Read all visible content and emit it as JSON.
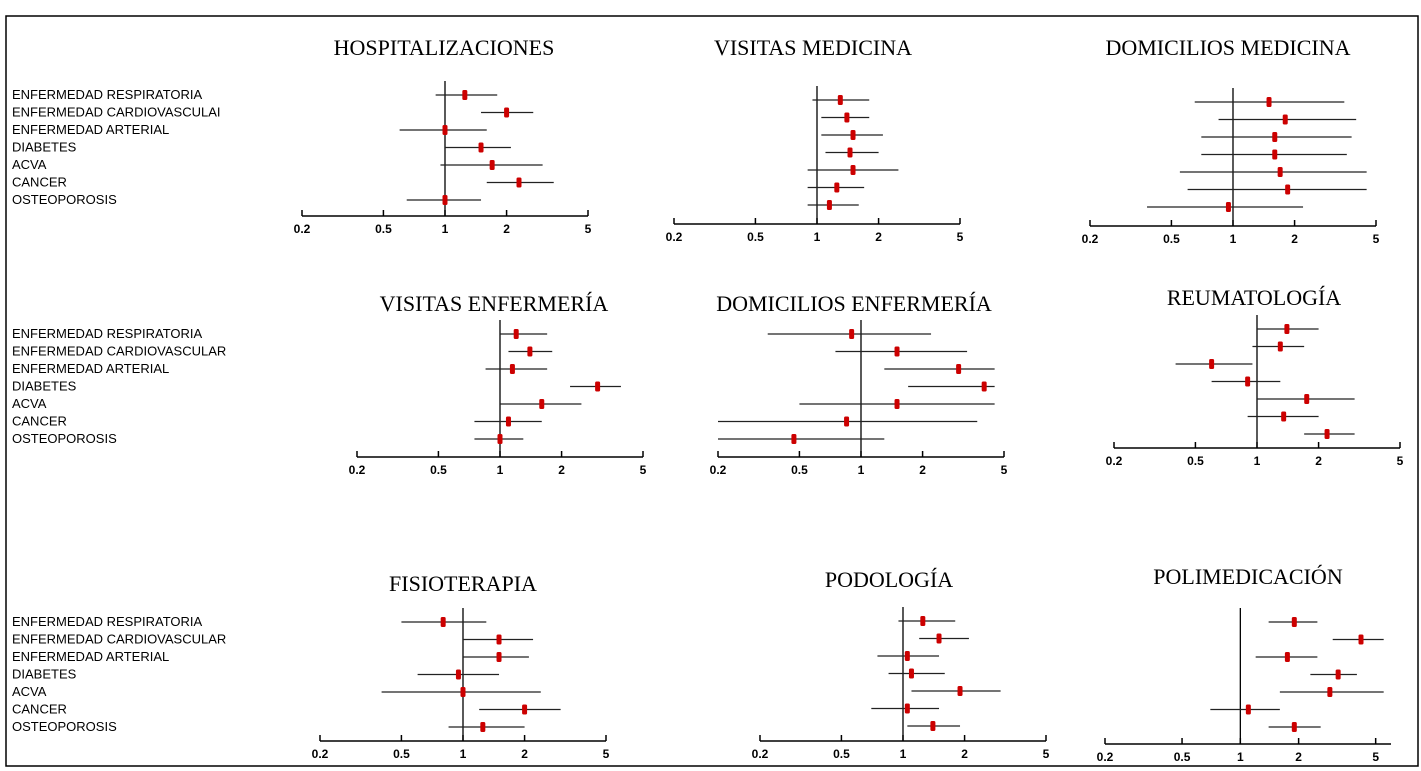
{
  "chart_data": [
    {
      "type": "forest",
      "title": "HOSPITALIZACIONES",
      "categories": [
        "ENFERMEDAD RESPIRATORIA",
        "ENFERMEDAD CARDIOVASCULAI",
        "ENFERMEDAD ARTERIAL",
        "DIABETES",
        "ACVA",
        "CANCER",
        "OSTEOPOROSIS"
      ],
      "estimate": [
        1.25,
        2.0,
        1.0,
        1.5,
        1.7,
        2.3,
        1.0
      ],
      "ci_low": [
        0.9,
        1.5,
        0.6,
        1.0,
        0.95,
        1.6,
        0.65
      ],
      "ci_high": [
        1.8,
        2.7,
        1.6,
        2.1,
        3.0,
        3.4,
        1.5
      ],
      "scale": "log",
      "ticks": [
        "0.2",
        "0.5",
        "1",
        "2",
        "5"
      ],
      "xlim": [
        0.2,
        5
      ]
    },
    {
      "type": "forest",
      "title": "VISITAS MEDICINA",
      "categories": [
        "ENFERMEDAD RESPIRATORIA",
        "ENFERMEDAD CARDIOVASCULAR",
        "ENFERMEDAD ARTERIAL",
        "DIABETES",
        "ACVA",
        "CANCER",
        "OSTEOPOROSIS"
      ],
      "estimate": [
        1.3,
        1.4,
        1.5,
        1.45,
        1.5,
        1.25,
        1.15
      ],
      "ci_low": [
        0.95,
        1.05,
        1.05,
        1.1,
        0.9,
        0.9,
        0.9
      ],
      "ci_high": [
        1.8,
        1.8,
        2.1,
        2.0,
        2.5,
        1.7,
        1.6
      ],
      "scale": "log",
      "ticks": [
        "0.2",
        "0.5",
        "1",
        "2",
        "5"
      ],
      "xlim": [
        0.2,
        5
      ]
    },
    {
      "type": "forest",
      "title": "DOMICILIOS MEDICINA",
      "categories": [
        "ENFERMEDAD RESPIRATORIA",
        "ENFERMEDAD CARDIOVASCULAR",
        "ENFERMEDAD ARTERIAL",
        "DIABETES",
        "ACVA",
        "CANCER",
        "OSTEOPOROSIS"
      ],
      "estimate": [
        1.5,
        1.8,
        1.6,
        1.6,
        1.7,
        1.85,
        0.95
      ],
      "ci_low": [
        0.65,
        0.85,
        0.7,
        0.7,
        0.55,
        0.6,
        0.38
      ],
      "ci_high": [
        3.5,
        4.0,
        3.8,
        3.6,
        4.5,
        4.5,
        2.2
      ],
      "scale": "log",
      "ticks": [
        "0.2",
        "0.5",
        "1",
        "2",
        "5"
      ],
      "xlim": [
        0.2,
        5
      ]
    },
    {
      "type": "forest",
      "title": "VISITAS ENFERMERÍA",
      "categories": [
        "ENFERMEDAD RESPIRATORIA",
        "ENFERMEDAD CARDIOVASCULAR",
        "ENFERMEDAD ARTERIAL",
        "DIABETES",
        "ACVA",
        "CANCER",
        "OSTEOPOROSIS"
      ],
      "estimate": [
        1.2,
        1.4,
        1.15,
        3.0,
        1.6,
        1.1,
        1.0
      ],
      "ci_low": [
        1.0,
        1.1,
        0.85,
        2.2,
        1.0,
        0.75,
        0.75
      ],
      "ci_high": [
        1.7,
        1.8,
        1.7,
        3.9,
        2.5,
        1.6,
        1.3
      ],
      "scale": "log",
      "ticks": [
        "0.2",
        "0.5",
        "1",
        "2",
        "5"
      ],
      "xlim": [
        0.2,
        5
      ]
    },
    {
      "type": "forest",
      "title": "DOMICILIOS ENFERMERÍA",
      "categories": [
        "ENFERMEDAD RESPIRATORIA",
        "ENFERMEDAD CARDIOVASCULAR",
        "ENFERMEDAD ARTERIAL",
        "DIABETES",
        "ACVA",
        "CANCER",
        "OSTEOPOROSIS"
      ],
      "estimate": [
        0.9,
        1.5,
        3.0,
        4.0,
        1.5,
        0.85,
        0.47
      ],
      "ci_low": [
        0.35,
        0.75,
        1.3,
        1.7,
        0.5,
        0.2,
        0.2
      ],
      "ci_high": [
        2.2,
        3.3,
        4.5,
        4.5,
        4.5,
        3.7,
        1.3
      ],
      "scale": "log",
      "ticks": [
        "0.2",
        "0.5",
        "1",
        "2",
        "5"
      ],
      "xlim": [
        0.2,
        5
      ]
    },
    {
      "type": "forest",
      "title": "REUMATOLOGÍA",
      "categories": [
        "ENFERMEDAD RESPIRATORIA",
        "ENFERMEDAD CARDIOVASCULAR",
        "ENFERMEDAD ARTERIAL",
        "DIABETES",
        "ACVA",
        "CANCER",
        "OSTEOPOROSIS"
      ],
      "estimate": [
        1.4,
        1.3,
        0.6,
        0.9,
        1.75,
        1.35,
        2.2
      ],
      "ci_low": [
        1.0,
        0.95,
        0.4,
        0.6,
        1.0,
        0.9,
        1.7
      ],
      "ci_high": [
        2.0,
        1.7,
        0.95,
        1.3,
        3.0,
        2.0,
        3.0
      ],
      "scale": "log",
      "ticks": [
        "0.2",
        "0.5",
        "1",
        "2",
        "5"
      ],
      "xlim": [
        0.2,
        5
      ]
    },
    {
      "type": "forest",
      "title": "FISIOTERAPIA",
      "categories": [
        "ENFERMEDAD RESPIRATORIA",
        "ENFERMEDAD CARDIOVASCULAR",
        "ENFERMEDAD ARTERIAL",
        "DIABETES",
        "ACVA",
        "CANCER",
        "OSTEOPOROSIS"
      ],
      "estimate": [
        0.8,
        1.5,
        1.5,
        0.95,
        1.0,
        2.0,
        1.25
      ],
      "ci_low": [
        0.5,
        1.0,
        1.0,
        0.6,
        0.4,
        1.2,
        0.85
      ],
      "ci_high": [
        1.3,
        2.2,
        2.1,
        1.5,
        2.4,
        3.0,
        2.0
      ],
      "scale": "log",
      "ticks": [
        "0.2",
        "0.5",
        "1",
        "2",
        "5"
      ],
      "xlim": [
        0.2,
        5
      ]
    },
    {
      "type": "forest",
      "title": "PODOLOGÍA",
      "categories": [
        "ENFERMEDAD RESPIRATORIA",
        "ENFERMEDAD CARDIOVASCULAR",
        "ENFERMEDAD ARTERIAL",
        "DIABETES",
        "ACVA",
        "CANCER",
        "OSTEOPOROSIS"
      ],
      "estimate": [
        1.25,
        1.5,
        1.05,
        1.1,
        1.9,
        1.05,
        1.4
      ],
      "ci_low": [
        0.95,
        1.2,
        0.75,
        0.85,
        1.1,
        0.7,
        1.05
      ],
      "ci_high": [
        1.8,
        2.1,
        1.5,
        1.6,
        3.0,
        1.5,
        1.9
      ],
      "scale": "log",
      "ticks": [
        "0.2",
        "0.5",
        "1",
        "2",
        "5"
      ],
      "xlim": [
        0.2,
        5
      ]
    },
    {
      "type": "forest",
      "title": "POLIMEDICACIÓN",
      "categories": [
        "ENFERMEDAD RESPIRATORIA",
        "ENFERMEDAD CARDIOVASCULAR",
        "ENFERMEDAD ARTERIAL",
        "DIABETES",
        "ACVA",
        "CANCER",
        "OSTEOPOROSIS"
      ],
      "estimate": [
        1.9,
        4.2,
        1.75,
        3.2,
        2.9,
        1.1,
        1.9
      ],
      "ci_low": [
        1.4,
        3.0,
        1.2,
        2.3,
        1.6,
        0.7,
        1.4
      ],
      "ci_high": [
        2.5,
        5.5,
        2.5,
        4.0,
        5.5,
        1.6,
        2.6
      ],
      "scale": "log",
      "ticks": [
        "0.2",
        "0.5",
        "1",
        "2",
        "5"
      ],
      "xlim": [
        0.2,
        6
      ]
    }
  ]
}
